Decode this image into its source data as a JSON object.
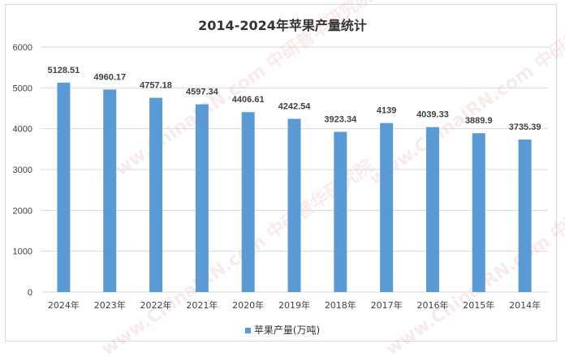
{
  "chart_data": {
    "type": "bar",
    "title": "2014-2024年苹果产量统计",
    "categories": [
      "2024年",
      "2023年",
      "2022年",
      "2021年",
      "2020年",
      "2019年",
      "2018年",
      "2017年",
      "2016年",
      "2015年",
      "2014年"
    ],
    "series": [
      {
        "name": "苹果产量(万吨)",
        "values": [
          5128.51,
          4960.17,
          4757.18,
          4597.34,
          4406.61,
          4242.54,
          3923.34,
          4139,
          4039.33,
          3889.9,
          3735.39
        ]
      }
    ],
    "data_labels": [
      "5128.51",
      "4960.17",
      "4757.18",
      "4597.34",
      "4406.61",
      "4242.54",
      "3923.34",
      "4139",
      "4039.33",
      "3889.9",
      "3735.39"
    ],
    "ylim": [
      0,
      6000
    ],
    "yticks": [
      "0",
      "1000",
      "2000",
      "3000",
      "4000",
      "5000",
      "6000"
    ],
    "xlabel": "",
    "ylabel": "",
    "grid": true,
    "legend_position": "bottom",
    "colors": {
      "bar": "#5b9bd5",
      "grid": "#d9d9d9",
      "text": "#404040"
    }
  },
  "watermark": "www.ChinaIRN.com 中研普华研究院"
}
